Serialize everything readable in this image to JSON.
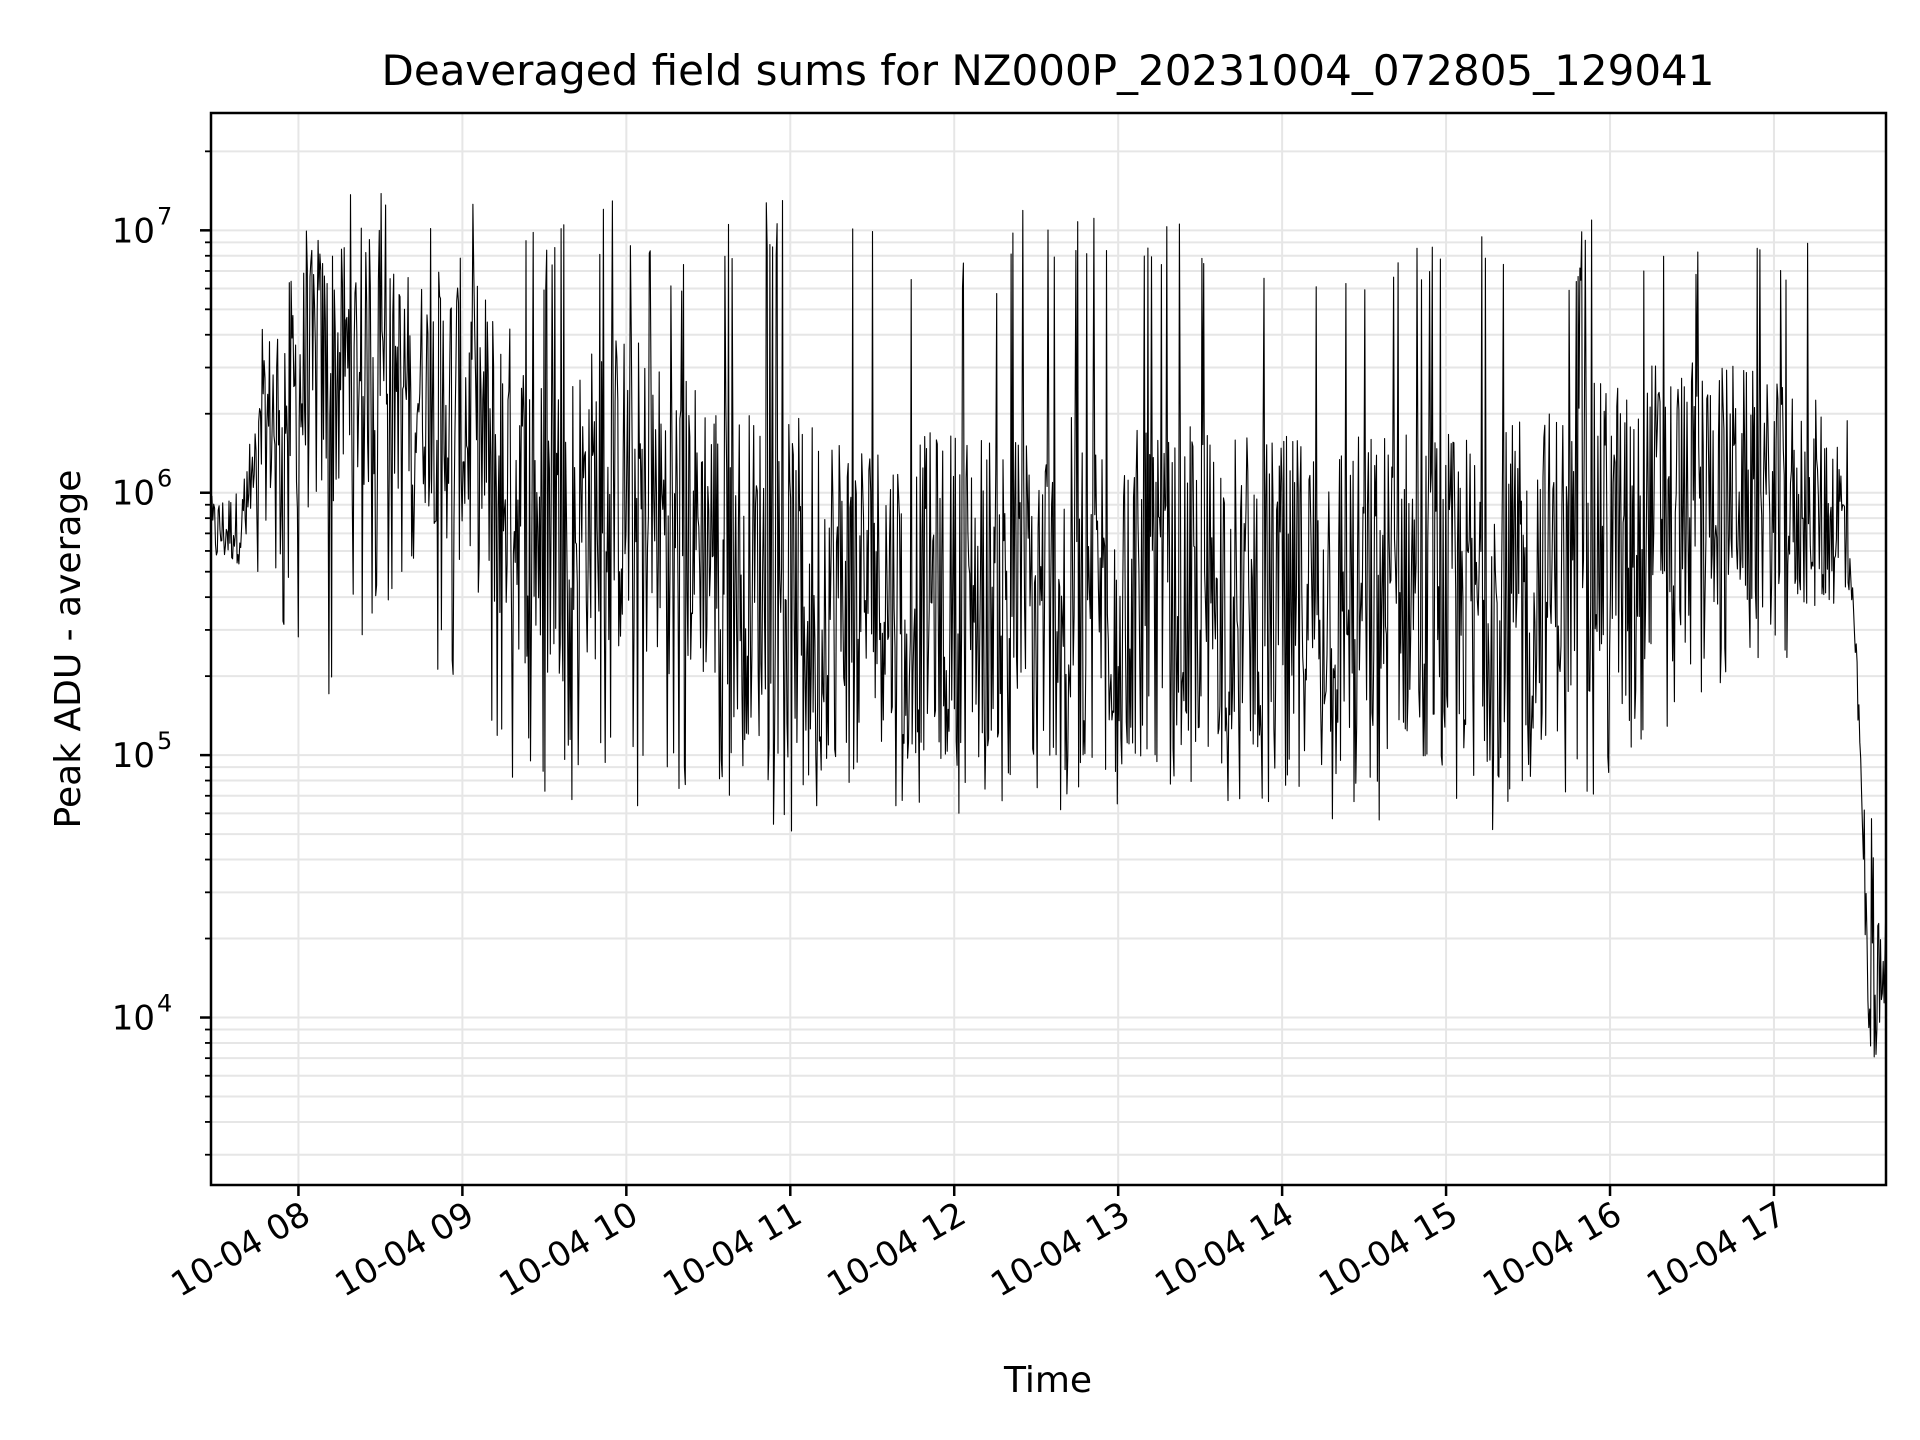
{
  "chart_data": {
    "type": "line",
    "title": "Deaveraged field sums for NZ000P_20231004_072805_129041",
    "xlabel": "Time",
    "ylabel": "Peak ADU - average",
    "yscale": "log",
    "ylim": [
      2300,
      28000000
    ],
    "xlim": [
      "2023-10-04 07:28",
      "2023-10-04 17:41"
    ],
    "grid": true,
    "line_color": "#000000",
    "grid_color": "#e6e6e6",
    "x_ticks": [
      {
        "value": "2023-10-04 08:00",
        "label": "10-04 08"
      },
      {
        "value": "2023-10-04 09:00",
        "label": "10-04 09"
      },
      {
        "value": "2023-10-04 10:00",
        "label": "10-04 10"
      },
      {
        "value": "2023-10-04 11:00",
        "label": "10-04 11"
      },
      {
        "value": "2023-10-04 12:00",
        "label": "10-04 12"
      },
      {
        "value": "2023-10-04 13:00",
        "label": "10-04 13"
      },
      {
        "value": "2023-10-04 14:00",
        "label": "10-04 14"
      },
      {
        "value": "2023-10-04 15:00",
        "label": "10-04 15"
      },
      {
        "value": "2023-10-04 16:00",
        "label": "10-04 16"
      },
      {
        "value": "2023-10-04 17:00",
        "label": "10-04 17"
      }
    ],
    "y_ticks": [
      {
        "value": 10000,
        "base": "10",
        "exp": "4"
      },
      {
        "value": 100000,
        "base": "10",
        "exp": "5"
      },
      {
        "value": 1000000,
        "base": "10",
        "exp": "6"
      },
      {
        "value": 10000000,
        "base": "10",
        "exp": "7"
      }
    ],
    "series": [
      {
        "x": [
          "2023-10-04 07:28",
          "2023-10-04 07:40",
          "2023-10-04 07:50",
          "2023-10-04 08:00",
          "2023-10-04 08:15",
          "2023-10-04 08:30",
          "2023-10-04 08:45",
          "2023-10-04 09:00",
          "2023-10-04 09:15",
          "2023-10-04 09:30",
          "2023-10-04 09:45",
          "2023-10-04 10:00",
          "2023-10-04 10:15",
          "2023-10-04 10:30",
          "2023-10-04 10:45",
          "2023-10-04 11:00",
          "2023-10-04 11:15",
          "2023-10-04 11:30",
          "2023-10-04 11:45",
          "2023-10-04 12:00",
          "2023-10-04 12:15",
          "2023-10-04 12:30",
          "2023-10-04 12:45",
          "2023-10-04 13:00",
          "2023-10-04 13:15",
          "2023-10-04 13:30",
          "2023-10-04 13:45",
          "2023-10-04 14:00",
          "2023-10-04 14:15",
          "2023-10-04 14:30",
          "2023-10-04 14:45",
          "2023-10-04 15:00",
          "2023-10-04 15:15",
          "2023-10-04 15:30",
          "2023-10-04 15:45",
          "2023-10-04 16:00",
          "2023-10-04 16:15",
          "2023-10-04 16:30",
          "2023-10-04 16:45",
          "2023-10-04 17:00",
          "2023-10-04 17:15",
          "2023-10-04 17:25",
          "2023-10-04 17:30",
          "2023-10-04 17:35",
          "2023-10-04 17:41"
        ],
        "y": [
          700000,
          750000,
          2000000,
          2500000,
          3000000,
          2800000,
          2500000,
          2000000,
          1200000,
          700000,
          900000,
          1000000,
          800000,
          700000,
          500000,
          400000,
          450000,
          450000,
          400000,
          450000,
          450000,
          400000,
          450000,
          450000,
          400000,
          450000,
          450000,
          400000,
          450000,
          400000,
          450000,
          400000,
          400000,
          450000,
          550000,
          700000,
          900000,
          1000000,
          1100000,
          900000,
          900000,
          800000,
          250000,
          12000,
          15000
        ],
        "min_envelope": [
          550000,
          450000,
          400000,
          200000,
          150000,
          400000,
          300000,
          100000,
          80000,
          60000,
          70000,
          60000,
          70000,
          70000,
          60000,
          50000,
          60000,
          70000,
          60000,
          60000,
          60000,
          60000,
          55000,
          60000,
          65000,
          70000,
          65000,
          60000,
          55000,
          50000,
          55000,
          50000,
          50000,
          50000,
          45000,
          80000,
          100000,
          150000,
          200000,
          200000,
          300000,
          400000,
          200000,
          4000,
          7000
        ],
        "max_envelope": [
          1800000,
          1500000,
          9000000,
          12000000,
          15000000,
          15000000,
          12000000,
          15000000,
          15000000,
          10000000,
          12000000,
          14000000,
          10000000,
          10000000,
          12000000,
          15000000,
          15000000,
          10000000,
          10000000,
          10000000,
          10000000,
          14000000,
          12000000,
          12000000,
          10000000,
          12000000,
          10000000,
          10000000,
          10000000,
          10000000,
          10000000,
          10000000,
          10000000,
          10000000,
          10000000,
          12000000,
          12000000,
          10000000,
          10000000,
          10000000,
          9000000,
          7000000,
          300000,
          65000,
          35000
        ]
      }
    ]
  }
}
